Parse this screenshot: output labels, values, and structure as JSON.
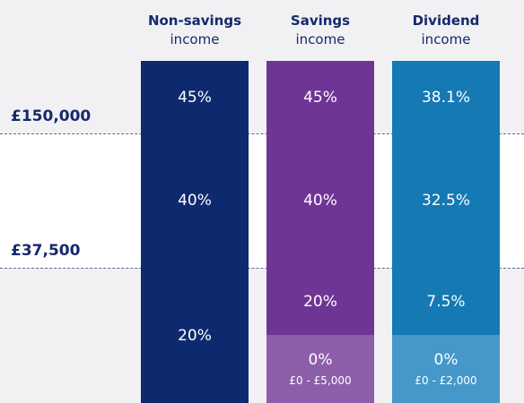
{
  "thresholds": {
    "upper": "£150,000",
    "lower": "£37,500"
  },
  "columns": [
    {
      "title_bold": "Non-savings",
      "title_light": "income",
      "rates": {
        "additional": "45%",
        "higher": "40%",
        "basic": "20%"
      }
    },
    {
      "title_bold": "Savings",
      "title_light": "income",
      "rates": {
        "additional": "45%",
        "higher": "40%",
        "basic": "20%",
        "zero": "0%",
        "zero_range": "£0 - £5,000"
      }
    },
    {
      "title_bold": "Dividend",
      "title_light": "income",
      "rates": {
        "additional": "38.1%",
        "higher": "32.5%",
        "basic": "7.5%",
        "zero": "0%",
        "zero_range": "£0 - £2,000"
      }
    }
  ],
  "colors": {
    "non_savings": "#0e2a6f",
    "savings": "#6f3595",
    "savings_zero": "#8d5eaa",
    "dividend": "#1579b4",
    "dividend_zero": "#4598c9",
    "text_dark": "#16296a"
  }
}
